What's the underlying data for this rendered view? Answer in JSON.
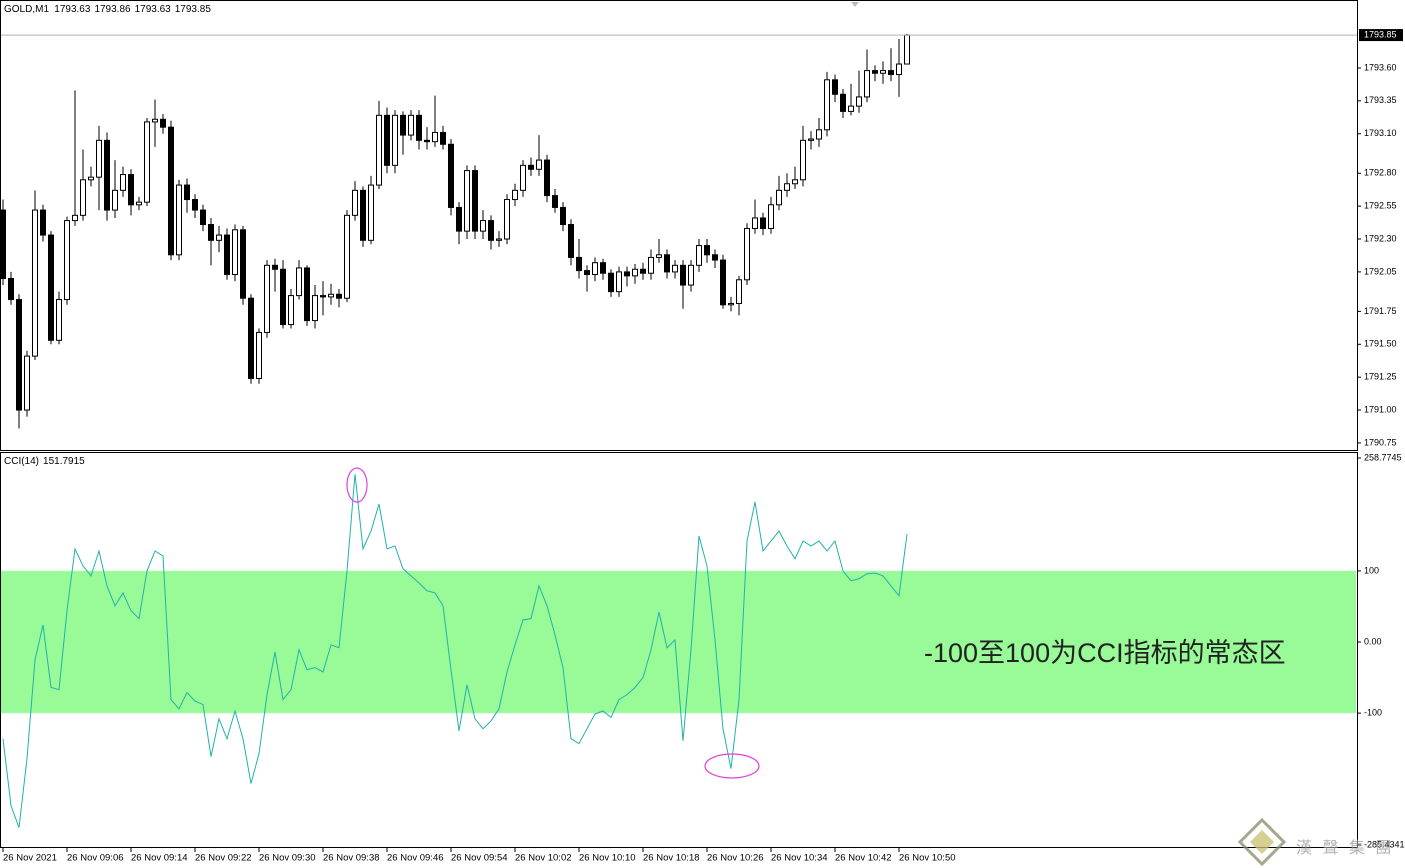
{
  "chart_data": [
    {
      "type": "candlestick",
      "title": "GOLD,M1",
      "categories": [
        "26 Nov 2021",
        null,
        null,
        null,
        null,
        null,
        null,
        null,
        "26 Nov 09:06",
        null,
        null,
        null,
        null,
        null,
        null,
        null,
        "26 Nov 09:14",
        null,
        null,
        null,
        null,
        null,
        null,
        null,
        "26 Nov 09:22",
        null,
        null,
        null,
        null,
        null,
        null,
        null,
        "26 Nov 09:30",
        null,
        null,
        null,
        null,
        null,
        null,
        null,
        "26 Nov 09:38",
        null,
        null,
        null,
        null,
        null,
        null,
        null,
        "26 Nov 09:46",
        null,
        null,
        null,
        null,
        null,
        null,
        null,
        "26 Nov 09:54",
        null,
        null,
        null,
        null,
        null,
        null,
        null,
        "26 Nov 10:02",
        null,
        null,
        null,
        null,
        null,
        null,
        null,
        "26 Nov 10:10",
        null,
        null,
        null,
        null,
        null,
        null,
        null,
        "26 Nov 10:18",
        null,
        null,
        null,
        null,
        null,
        null,
        null,
        "26 Nov 10:26",
        null,
        null,
        null,
        null,
        null,
        null,
        null,
        "26 Nov 10:34",
        null,
        null,
        null,
        null,
        null,
        null,
        null,
        "26 Nov 10:42",
        null,
        null,
        null,
        null,
        null,
        null,
        null,
        "26 Nov 10:50",
        null
      ],
      "open": [
        1792.52,
        1792.0,
        1791.84,
        1791.0,
        1791.41,
        1792.52,
        1792.33,
        1791.53,
        1791.84,
        1792.44,
        1792.48,
        1792.75,
        1792.77,
        1793.05,
        1792.52,
        1792.67,
        1792.79,
        1792.56,
        1792.58,
        1793.19,
        1793.21,
        1793.15,
        1792.18,
        1792.71,
        1792.6,
        1792.52,
        1792.41,
        1792.29,
        1792.33,
        1792.03,
        1792.37,
        1791.85,
        1791.24,
        1791.59,
        1792.1,
        1792.07,
        1791.65,
        1791.87,
        1792.08,
        1791.68,
        1791.87,
        1791.86,
        1791.88,
        1791.85,
        1792.48,
        1792.67,
        1792.29,
        1792.71,
        1793.24,
        1792.86,
        1793.24,
        1793.09,
        1793.24,
        1793.05,
        1793.04,
        1793.11,
        1793.02,
        1792.54,
        1792.36,
        1792.82,
        1792.36,
        1792.44,
        1792.29,
        1792.3,
        1792.6,
        1792.67,
        1792.86,
        1792.83,
        1792.9,
        1792.63,
        1792.54,
        1792.41,
        1792.16,
        1792.06,
        1792.03,
        1792.12,
        1792.04,
        1791.9,
        1792.05,
        1792.02,
        1792.07,
        1792.04,
        1792.16,
        1792.18,
        1792.05,
        1792.1,
        1791.95,
        1792.1,
        1792.25,
        1792.18,
        1792.14,
        1791.8,
        1791.81,
        1791.99,
        1792.38,
        1792.46,
        1792.38,
        1792.56,
        1792.67,
        1792.72,
        1792.75,
        1793.05,
        1793.06,
        1793.13,
        1793.51,
        1793.4,
        1793.27,
        1793.31,
        1793.38,
        1793.58,
        1793.56,
        1793.58,
        1793.55,
        1793.63
      ],
      "high": [
        1792.6,
        1792.05,
        1791.88,
        1791.45,
        1792.67,
        1792.56,
        1792.36,
        1791.9,
        1792.47,
        1793.43,
        1792.98,
        1792.85,
        1793.16,
        1793.11,
        1792.9,
        1792.85,
        1792.83,
        1792.62,
        1793.22,
        1793.36,
        1793.25,
        1793.2,
        1792.75,
        1792.76,
        1792.64,
        1792.56,
        1792.46,
        1792.4,
        1792.38,
        1792.41,
        1792.4,
        1791.88,
        1791.62,
        1792.14,
        1792.15,
        1792.14,
        1791.92,
        1792.14,
        1792.1,
        1791.95,
        1791.98,
        1791.96,
        1791.92,
        1792.52,
        1792.74,
        1792.7,
        1792.78,
        1793.35,
        1793.3,
        1793.28,
        1793.27,
        1793.28,
        1793.28,
        1793.15,
        1793.39,
        1793.16,
        1793.06,
        1792.58,
        1792.86,
        1792.86,
        1792.52,
        1792.48,
        1792.36,
        1792.64,
        1792.72,
        1792.9,
        1792.92,
        1793.09,
        1792.94,
        1792.68,
        1792.58,
        1792.45,
        1792.3,
        1792.1,
        1792.16,
        1792.15,
        1792.07,
        1792.09,
        1792.09,
        1792.11,
        1792.12,
        1792.22,
        1792.3,
        1792.22,
        1792.14,
        1792.14,
        1792.14,
        1792.3,
        1792.3,
        1792.22,
        1792.18,
        1791.86,
        1792.02,
        1792.42,
        1792.6,
        1792.5,
        1792.62,
        1792.78,
        1792.8,
        1792.85,
        1793.16,
        1793.12,
        1793.22,
        1793.57,
        1793.55,
        1793.44,
        1793.48,
        1793.58,
        1793.74,
        1793.62,
        1793.65,
        1793.75,
        1793.82,
        1793.86
      ],
      "low": [
        1791.95,
        1791.8,
        1790.86,
        1790.95,
        1791.38,
        1792.28,
        1791.5,
        1791.5,
        1791.8,
        1792.4,
        1792.44,
        1792.7,
        1792.52,
        1792.44,
        1792.46,
        1792.62,
        1792.48,
        1792.52,
        1792.55,
        1793.0,
        1793.1,
        1792.14,
        1792.14,
        1792.5,
        1792.46,
        1792.36,
        1792.1,
        1792.2,
        1791.99,
        1791.98,
        1791.8,
        1791.2,
        1791.2,
        1791.55,
        1791.9,
        1791.62,
        1791.62,
        1791.84,
        1791.64,
        1791.62,
        1791.72,
        1791.8,
        1791.78,
        1791.82,
        1792.44,
        1792.24,
        1792.26,
        1792.68,
        1792.8,
        1792.8,
        1792.94,
        1793.05,
        1792.98,
        1792.98,
        1793.0,
        1792.98,
        1792.48,
        1792.26,
        1792.3,
        1792.3,
        1792.3,
        1792.22,
        1792.24,
        1792.26,
        1792.55,
        1792.62,
        1792.78,
        1792.78,
        1792.58,
        1792.5,
        1792.36,
        1792.1,
        1792.0,
        1791.9,
        1791.98,
        1791.99,
        1791.86,
        1791.86,
        1791.94,
        1791.96,
        1791.99,
        1791.99,
        1792.12,
        1792.0,
        1792.0,
        1791.77,
        1791.9,
        1792.05,
        1792.12,
        1792.08,
        1791.77,
        1791.75,
        1791.72,
        1791.95,
        1792.34,
        1792.33,
        1792.34,
        1792.52,
        1792.62,
        1792.68,
        1792.7,
        1792.98,
        1793.0,
        1793.08,
        1793.34,
        1793.22,
        1793.24,
        1793.26,
        1793.34,
        1793.5,
        1793.48,
        1793.5,
        1793.38,
        1793.63
      ],
      "close": [
        1792.0,
        1791.84,
        1791.0,
        1791.41,
        1792.52,
        1792.33,
        1791.53,
        1791.84,
        1792.44,
        1792.48,
        1792.75,
        1792.77,
        1793.05,
        1792.52,
        1792.67,
        1792.79,
        1792.56,
        1792.58,
        1793.19,
        1793.21,
        1793.15,
        1792.18,
        1792.71,
        1792.6,
        1792.52,
        1792.41,
        1792.29,
        1792.33,
        1792.03,
        1792.37,
        1791.85,
        1791.24,
        1791.59,
        1792.1,
        1792.07,
        1791.65,
        1791.87,
        1792.08,
        1791.68,
        1791.87,
        1791.86,
        1791.88,
        1791.85,
        1792.48,
        1792.67,
        1792.29,
        1792.71,
        1793.24,
        1792.86,
        1793.24,
        1793.09,
        1793.24,
        1793.05,
        1793.04,
        1793.11,
        1793.02,
        1792.54,
        1792.36,
        1792.82,
        1792.36,
        1792.44,
        1792.29,
        1792.3,
        1792.6,
        1792.67,
        1792.86,
        1792.83,
        1792.9,
        1792.63,
        1792.54,
        1792.41,
        1792.16,
        1792.06,
        1792.03,
        1792.12,
        1792.04,
        1791.9,
        1792.05,
        1792.02,
        1792.07,
        1792.04,
        1792.16,
        1792.18,
        1792.05,
        1792.1,
        1791.95,
        1792.1,
        1792.25,
        1792.18,
        1792.14,
        1791.8,
        1791.81,
        1791.99,
        1792.38,
        1792.46,
        1792.38,
        1792.56,
        1792.67,
        1792.72,
        1792.75,
        1793.05,
        1793.06,
        1793.13,
        1793.51,
        1793.4,
        1793.27,
        1793.31,
        1793.38,
        1793.58,
        1793.56,
        1793.58,
        1793.55,
        1793.63,
        1793.85
      ],
      "ylim": [
        1790.704,
        1794.109
      ],
      "yticks": [
        {
          "value": 1793.6,
          "label": "1793.60"
        },
        1793.35,
        {
          "value": 1793.1,
          "label": "1793.10"
        },
        {
          "value": 1792.8,
          "label": "1792.80"
        },
        1792.55,
        {
          "value": 1792.3,
          "label": "1792.30"
        },
        1792.05,
        1791.75,
        {
          "value": 1791.5,
          "label": "1791.50"
        },
        1791.25,
        {
          "value": 1791,
          "label": "1791.00"
        },
        1790.75
      ],
      "up_color": "#ffffff",
      "down_color": "#000000",
      "current_price_line": true
    },
    {
      "type": "line",
      "title": "CCI(14)",
      "color": "#20b2aa",
      "values": [
        -136,
        -230,
        -261,
        -164,
        -25,
        24,
        -64,
        -67,
        44,
        131,
        107,
        93,
        128,
        79,
        51,
        69,
        44,
        33,
        100,
        128,
        121,
        -81,
        -94,
        -71,
        -83,
        -88,
        -161,
        -108,
        -136,
        -97,
        -136,
        -199,
        -157,
        -74,
        -14,
        -81,
        -67,
        -11,
        -39,
        -36,
        -42,
        -4,
        -8,
        100,
        236,
        131,
        156,
        194,
        131,
        135,
        103,
        93,
        83,
        72,
        69,
        51,
        -39,
        -125,
        -60,
        -108,
        -122,
        -111,
        -94,
        -42,
        -4,
        31,
        33,
        79,
        51,
        10,
        -36,
        -136,
        -143,
        -122,
        -101,
        -97,
        -106,
        -81,
        -74,
        -64,
        -50,
        -11,
        42,
        -8,
        3,
        -139,
        -11,
        149,
        107,
        3,
        -122,
        -178,
        -81,
        142,
        197,
        128,
        142,
        156,
        135,
        117,
        142,
        135,
        142,
        128,
        142,
        100,
        86,
        89,
        96,
        97,
        93,
        79,
        65,
        151.7915
      ],
      "ylim": [
        -285.4341,
        258.7745
      ],
      "yticks": [
        258.7745,
        100,
        {
          "value": 0,
          "label": "0.00"
        },
        -100,
        -285.4341
      ],
      "band": {
        "from": -100,
        "to": 100,
        "color": "#98fb98"
      },
      "annotation": "-100至100为CCI指标的常态区"
    }
  ],
  "watermark": "漢 聲 集 團"
}
